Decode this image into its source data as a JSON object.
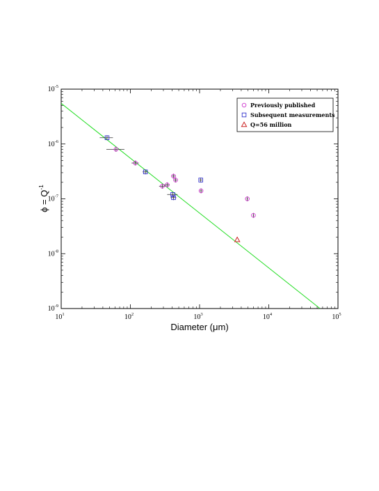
{
  "chart_data": {
    "type": "scatter",
    "title": "",
    "xlabel": "Diameter (μm)",
    "ylabel_base": "ϕ = Q",
    "ylabel_sup": "-1",
    "xscale": "log",
    "yscale": "log",
    "xlim": [
      10,
      100000
    ],
    "ylim": [
      1e-09,
      1e-05
    ],
    "x_ticks": [
      {
        "value": 10,
        "base": "10",
        "exp": "1"
      },
      {
        "value": 100,
        "base": "10",
        "exp": "2"
      },
      {
        "value": 1000,
        "base": "10",
        "exp": "3"
      },
      {
        "value": 10000,
        "base": "10",
        "exp": "4"
      },
      {
        "value": 100000,
        "base": "10",
        "exp": "5"
      }
    ],
    "y_ticks": [
      {
        "value": 1e-09,
        "base": "10",
        "exp": "-9"
      },
      {
        "value": 1e-08,
        "base": "10",
        "exp": "-8"
      },
      {
        "value": 1e-07,
        "base": "10",
        "exp": "-7"
      },
      {
        "value": 1e-06,
        "base": "10",
        "exp": "-6"
      },
      {
        "value": 1e-05,
        "base": "10",
        "exp": "-5"
      }
    ],
    "grid": false,
    "legend_position": "top-right",
    "series": [
      {
        "name": "Previously published",
        "marker": "circle",
        "color": "#cc33cc",
        "points": [
          {
            "x": 62,
            "y": 8e-07,
            "xerr": [
              45,
              82
            ]
          },
          {
            "x": 118,
            "y": 4.5e-07,
            "xerr": [
              104,
              132
            ]
          },
          {
            "x": 290,
            "y": 1.7e-07,
            "xerr": [
              260,
              320
            ]
          },
          {
            "x": 340,
            "y": 1.8e-07,
            "xerr": [
              310,
              370
            ]
          },
          {
            "x": 420,
            "y": 2.6e-07,
            "xerr": [
              392,
              448
            ]
          },
          {
            "x": 450,
            "y": 2.2e-07,
            "xerr": [
              430,
              470
            ]
          },
          {
            "x": 1050,
            "y": 1.4e-07,
            "xerr": [
              1010,
              1090
            ]
          },
          {
            "x": 4900,
            "y": 1e-07,
            "xerr": [
              4800,
              5000
            ]
          },
          {
            "x": 6000,
            "y": 5e-08,
            "xerr": [
              5900,
              6100
            ]
          }
        ]
      },
      {
        "name": "Subsequent measurements",
        "marker": "square",
        "color": "#3333cc",
        "points": [
          {
            "x": 46,
            "y": 1.3e-06,
            "xerr": [
              36,
              56
            ]
          },
          {
            "x": 165,
            "y": 3.1e-07,
            "xerr": [
              150,
              180
            ]
          },
          {
            "x": 410,
            "y": 1.2e-07,
            "xerr": [
              340,
              480
            ]
          },
          {
            "x": 420,
            "y": 1.05e-07,
            "xerr": [
              380,
              460
            ]
          },
          {
            "x": 1040,
            "y": 2.2e-07,
            "xerr": [
              1000,
              1080
            ]
          }
        ]
      },
      {
        "name": "Q=56 million",
        "marker": "triangle",
        "color": "#cc2222",
        "points": [
          {
            "x": 3500,
            "y": 1.8e-08
          }
        ]
      }
    ],
    "fit_line": {
      "color": "#22dd22",
      "points": [
        {
          "x": 10,
          "y": 5.5e-06
        },
        {
          "x": 55000,
          "y": 1e-09
        }
      ]
    }
  }
}
